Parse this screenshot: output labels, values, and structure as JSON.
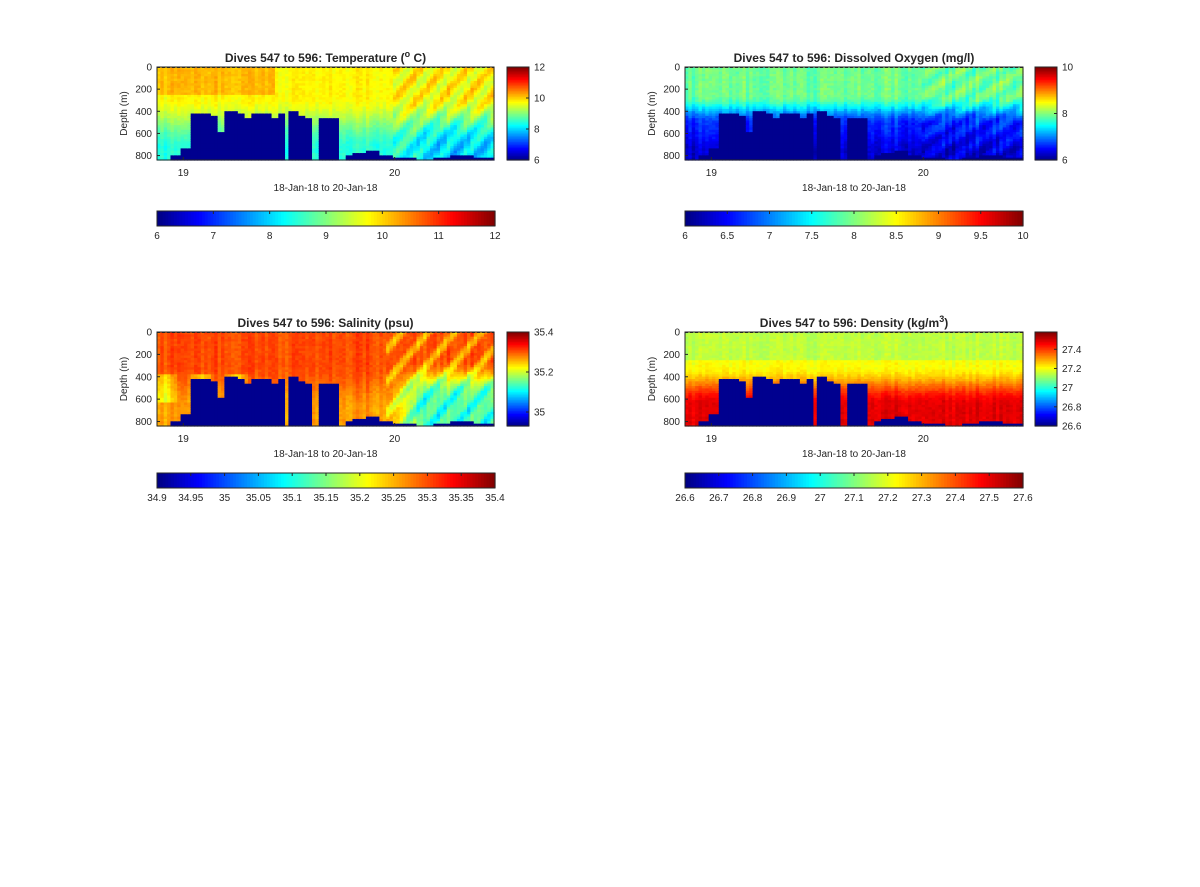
{
  "figure": {
    "background": "#ffffff",
    "colormap": "jet"
  },
  "chart_data": [
    {
      "type": "heatmap",
      "title_pre": "Dives 547 to 596: Temperature (",
      "title_sup": "o",
      "title_post": " C)",
      "xlabel": "18-Jan-18 to 20-Jan-18",
      "ylabel": "Depth (m)",
      "xticks": [
        "19",
        "20"
      ],
      "yticks": [
        "0",
        "200",
        "400",
        "600",
        "800"
      ],
      "ylim": [
        0,
        840
      ],
      "clim": [
        6,
        12
      ],
      "side_colorbar_ticks": [
        "12",
        "10",
        "8",
        "6"
      ],
      "side_colorbar_tick_values": [
        12,
        10,
        8,
        6
      ],
      "bottom_colorbar_ticks": [
        "6",
        "7",
        "8",
        "9",
        "10",
        "11",
        "12"
      ],
      "pattern": "temperature"
    },
    {
      "type": "heatmap",
      "title_pre": "Dives 547 to 596: Dissolved Oxygen (mg/l)",
      "title_sup": "",
      "title_post": "",
      "xlabel": "18-Jan-18 to 20-Jan-18",
      "ylabel": "Depth (m)",
      "xticks": [
        "19",
        "20"
      ],
      "yticks": [
        "0",
        "200",
        "400",
        "600",
        "800"
      ],
      "ylim": [
        0,
        840
      ],
      "clim": [
        6,
        10
      ],
      "side_colorbar_ticks": [
        "10",
        "8",
        "6"
      ],
      "side_colorbar_tick_values": [
        10,
        8,
        6
      ],
      "bottom_colorbar_ticks": [
        "6",
        "6.5",
        "7",
        "7.5",
        "8",
        "8.5",
        "9",
        "9.5",
        "10"
      ],
      "pattern": "oxygen"
    },
    {
      "type": "heatmap",
      "title_pre": "Dives 547 to 596: Salinity (psu)",
      "title_sup": "",
      "title_post": "",
      "xlabel": "18-Jan-18 to 20-Jan-18",
      "ylabel": "Depth (m)",
      "xticks": [
        "19",
        "20"
      ],
      "yticks": [
        "0",
        "200",
        "400",
        "600",
        "800"
      ],
      "ylim": [
        0,
        840
      ],
      "clim": [
        34.9,
        35.4
      ],
      "side_colorbar_clim": [
        34.93,
        35.4
      ],
      "side_colorbar_ticks": [
        "35.4",
        "35.2",
        "35"
      ],
      "side_colorbar_tick_values": [
        35.4,
        35.2,
        35.0
      ],
      "bottom_colorbar_ticks": [
        "34.9",
        "34.95",
        "35",
        "35.05",
        "35.1",
        "35.15",
        "35.2",
        "35.25",
        "35.3",
        "35.35",
        "35.4"
      ],
      "pattern": "salinity"
    },
    {
      "type": "heatmap",
      "title_pre": "Dives 547 to 596: Density (kg/m",
      "title_sup": "3",
      "title_post": ")",
      "xlabel": "18-Jan-18 to 20-Jan-18",
      "ylabel": "Depth (m)",
      "xticks": [
        "19",
        "20"
      ],
      "yticks": [
        "0",
        "200",
        "400",
        "600",
        "800"
      ],
      "ylim": [
        0,
        840
      ],
      "clim": [
        26.6,
        27.6
      ],
      "side_colorbar_clim": [
        26.6,
        27.58
      ],
      "side_colorbar_ticks": [
        "27.4",
        "27.2",
        "27",
        "26.8",
        "26.6"
      ],
      "side_colorbar_tick_values": [
        27.4,
        27.2,
        27.0,
        26.8,
        26.6
      ],
      "bottom_colorbar_ticks": [
        "26.6",
        "26.7",
        "26.8",
        "26.9",
        "27",
        "27.1",
        "27.2",
        "27.3",
        "27.4",
        "27.5",
        "27.6"
      ],
      "pattern": "density"
    }
  ]
}
